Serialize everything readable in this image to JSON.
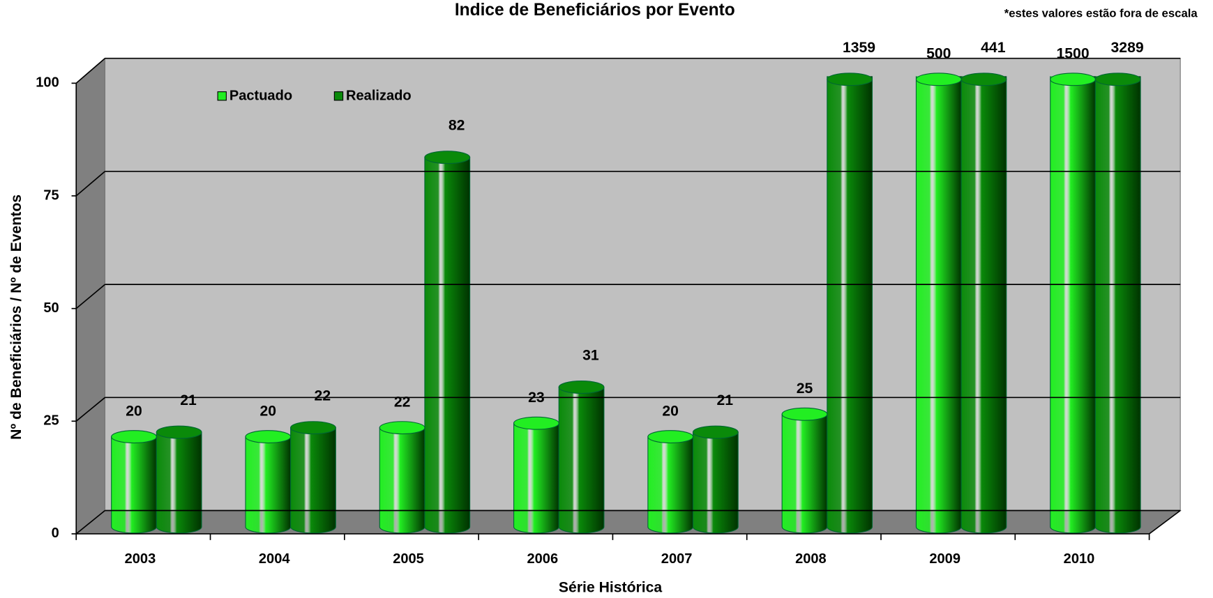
{
  "chart_data": {
    "type": "bar3d",
    "title": "Indice de Beneficiários por Evento",
    "note": "*estes valores estão fora de escala",
    "x_label": "Série Histórica",
    "y_label": "Nº de Beneficiários  / Nº de Eventos",
    "categories": [
      "2003",
      "2004",
      "2005",
      "2006",
      "2007",
      "2008",
      "2009",
      "2010"
    ],
    "series": [
      {
        "name": "Pactuado",
        "color": "#22ee22",
        "values": [
          20,
          20,
          22,
          23,
          20,
          25,
          500,
          1500
        ]
      },
      {
        "name": "Realizado",
        "color": "#0a8a0a",
        "values": [
          21,
          22,
          82,
          31,
          21,
          1359,
          441,
          3289
        ]
      }
    ],
    "ylim": [
      0,
      100
    ],
    "yticks": [
      0,
      25,
      50,
      75,
      100
    ],
    "grid": true,
    "legend": "top-left"
  }
}
